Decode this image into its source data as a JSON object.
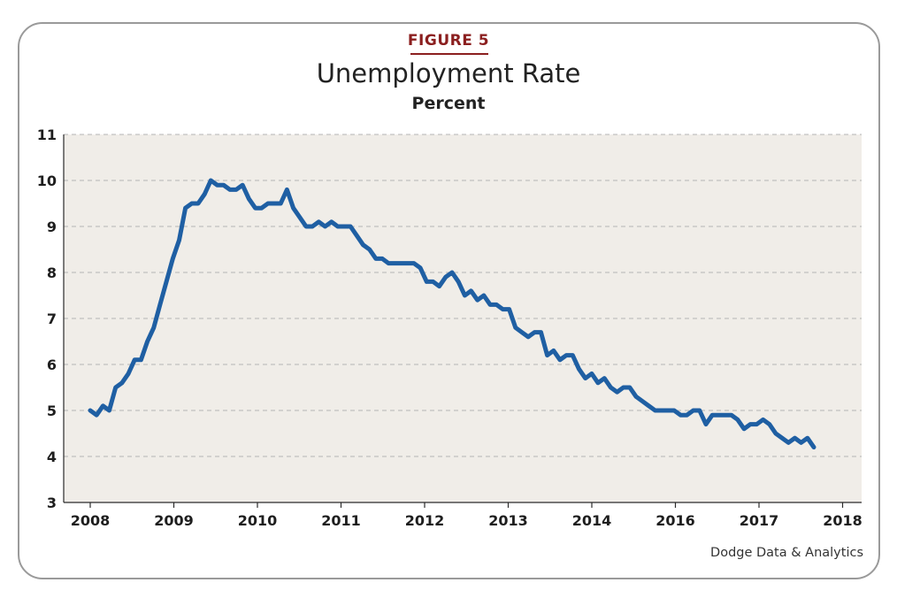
{
  "figure_label": "FIGURE 5",
  "title": "Unemployment Rate",
  "subtitle": "Percent",
  "source": "Dodge Data & Analytics",
  "colors": {
    "line": "#1f5fa3",
    "plot_background": "#f0ede8",
    "figure_label": "#8b1f1f",
    "grid": "#b5b5b5"
  },
  "chart_data": {
    "type": "line",
    "title": "Unemployment Rate",
    "ylabel": "Percent",
    "xlabel": "",
    "ylim": [
      3,
      11
    ],
    "yticks": [
      3,
      4,
      5,
      6,
      7,
      8,
      9,
      10,
      11
    ],
    "xtick_labels": [
      "2008",
      "2009",
      "2010",
      "2011",
      "2012",
      "2013",
      "2014",
      "2016",
      "2017",
      "2018"
    ],
    "grid": "horizontal dashed",
    "series": [
      {
        "name": "",
        "values": [
          5.0,
          4.9,
          5.1,
          5.0,
          5.5,
          5.6,
          5.8,
          6.1,
          6.1,
          6.5,
          6.8,
          7.3,
          7.8,
          8.3,
          8.7,
          9.4,
          9.5,
          9.5,
          9.7,
          10.0,
          9.9,
          9.9,
          9.8,
          9.8,
          9.9,
          9.6,
          9.4,
          9.4,
          9.5,
          9.5,
          9.5,
          9.8,
          9.4,
          9.2,
          9.0,
          9.0,
          9.1,
          9.0,
          9.1,
          9.0,
          9.0,
          9.0,
          8.8,
          8.6,
          8.5,
          8.3,
          8.3,
          8.2,
          8.2,
          8.2,
          8.2,
          8.2,
          8.1,
          7.8,
          7.8,
          7.7,
          7.9,
          8.0,
          7.8,
          7.5,
          7.6,
          7.4,
          7.5,
          7.3,
          7.3,
          7.2,
          7.2,
          6.8,
          6.7,
          6.6,
          6.7,
          6.7,
          6.2,
          6.3,
          6.1,
          6.2,
          6.2,
          5.9,
          5.7,
          5.8,
          5.6,
          5.7,
          5.5,
          5.4,
          5.5,
          5.5,
          5.3,
          5.2,
          5.1,
          5.0,
          5.0,
          5.0,
          5.0,
          4.9,
          4.9,
          5.0,
          5.0,
          4.7,
          4.9,
          4.9,
          4.9,
          4.9,
          4.8,
          4.6,
          4.7,
          4.7,
          4.8,
          4.7,
          4.5,
          4.4,
          4.3,
          4.4,
          4.3,
          4.4,
          4.2
        ]
      }
    ]
  }
}
